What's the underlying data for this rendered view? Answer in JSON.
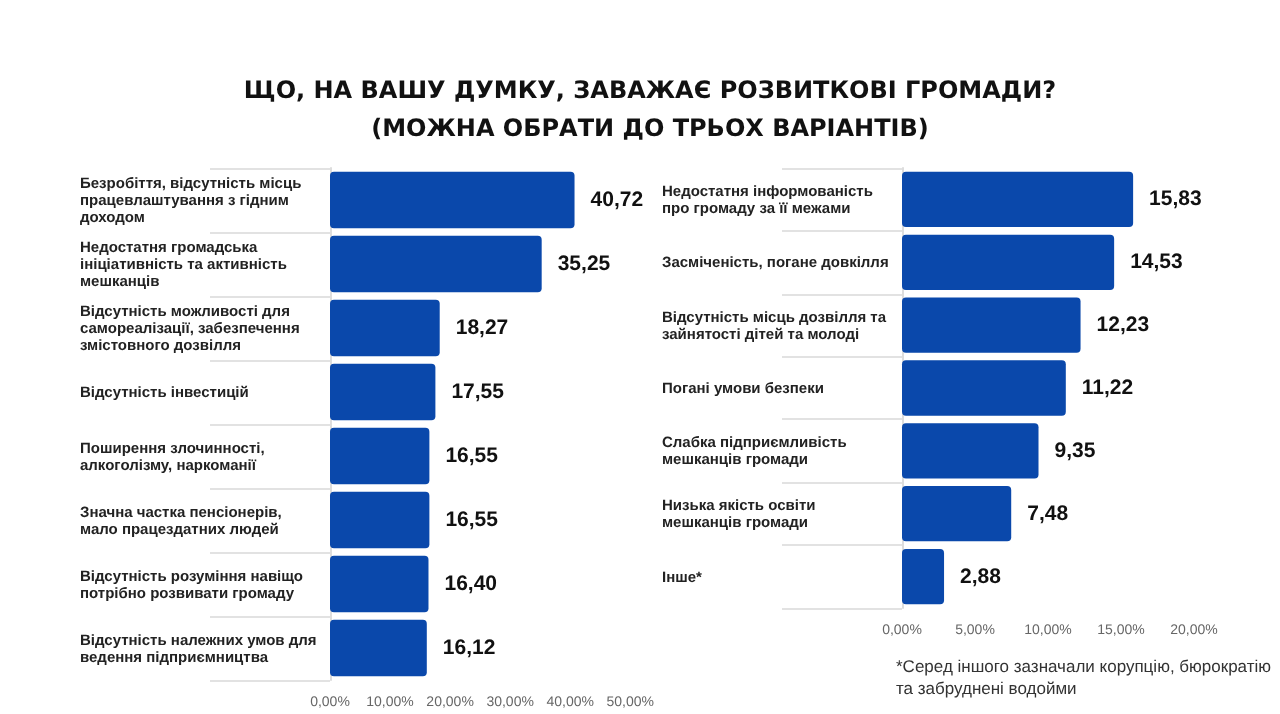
{
  "chart_data": [
    {
      "type": "bar",
      "orientation": "horizontal",
      "title": "ЩО, НА ВАШУ ДУМКУ, ЗАВАЖАЄ РОЗВИТКОВІ ГРОМАДИ?",
      "subtitle": "(МОЖНА ОБРАТИ ДО ТРЬОХ ВАРІАНТІВ)",
      "categories": [
        "Безробіття, відсутність місць працевлаштування з гідним доходом",
        "Недостатня громадська ініціативність та активність мешканців",
        "Відсутність можливості для самореалізації, забезпечення змістовного дозвілля",
        "Відсутність інвестицій",
        "Поширення злочинності, алкоголізму, наркоманії",
        "Значна частка пенсіонерів, мало працездатних людей",
        "Відсутність розуміння навіщо потрібно розвивати громаду",
        "Відсутність належних умов для ведення підприємництва"
      ],
      "values": [
        40.72,
        35.25,
        18.27,
        17.55,
        16.55,
        16.55,
        16.4,
        16.12
      ],
      "value_labels": [
        "40,72",
        "35,25",
        "18,27",
        "17,55",
        "16,55",
        "16,55",
        "16,40",
        "16,12"
      ],
      "color": "#0a48ab",
      "xlim": [
        0,
        50
      ],
      "xticks": [
        {
          "value": 0,
          "label": "0,00%"
        },
        {
          "value": 10,
          "label": "10,00%"
        },
        {
          "value": 20,
          "label": "20,00%"
        },
        {
          "value": 30,
          "label": "30,00%"
        },
        {
          "value": 40,
          "label": "40,00%"
        },
        {
          "value": 50,
          "label": "50,00%"
        }
      ]
    },
    {
      "type": "bar",
      "orientation": "horizontal",
      "categories": [
        "Недостатня інформованість про громаду за її межами",
        "Засміченість, погане довкілля",
        "Відсутність місць дозвілля та зайнятості дітей та молоді",
        "Погані умови безпеки",
        "Слабка підприємливість мешканців громади",
        "Низька якість освіти мешканців громади",
        "Інше*"
      ],
      "values": [
        15.83,
        14.53,
        12.23,
        11.22,
        9.35,
        7.48,
        2.88
      ],
      "value_labels": [
        "15,83",
        "14,53",
        "12,23",
        "11,22",
        "9,35",
        "7,48",
        "2,88"
      ],
      "color": "#0a48ab",
      "xlim": [
        0,
        20
      ],
      "xticks": [
        {
          "value": 0,
          "label": "0,00%"
        },
        {
          "value": 5,
          "label": "5,00%"
        },
        {
          "value": 10,
          "label": "10,00%"
        },
        {
          "value": 15,
          "label": "15,00%"
        },
        {
          "value": 20,
          "label": "20,00%"
        }
      ],
      "annotations": [
        "*Серед іншого  зазначали корупцію, бюрократію та забруднені водойми"
      ]
    }
  ]
}
